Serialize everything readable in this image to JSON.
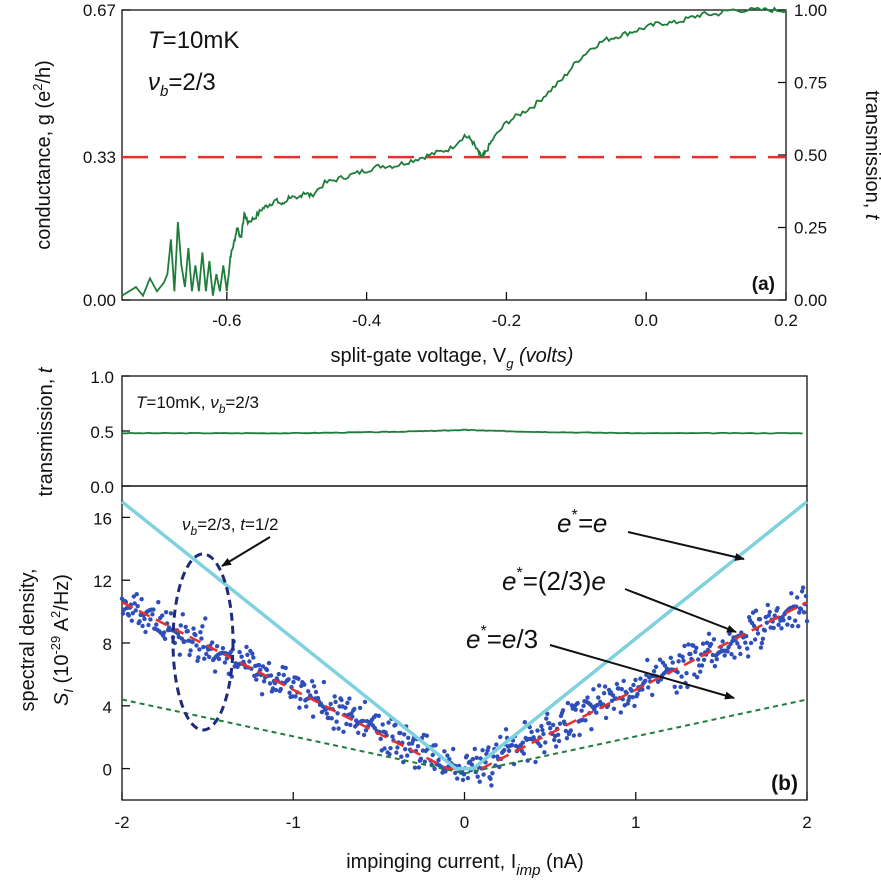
{
  "chart_data": [
    {
      "panel": "a",
      "type": "line",
      "panel_label": "(a)",
      "annotations": {
        "T_prefix": "T",
        "T_value": "=10mK",
        "nu_prefix": "ν",
        "nu_sub": "b",
        "nu_value": "=2/3"
      },
      "xlabel": {
        "text": "split-gate voltage, V",
        "sub": "g",
        "unit": "(volts)"
      },
      "ylabel_left": {
        "prefix": "conductance, g (e",
        "sup": "2",
        "suffix": "/h)"
      },
      "ylabel_right": {
        "text": "transmission, ",
        "var": "t"
      },
      "xlim": [
        -0.75,
        0.2
      ],
      "ylim": [
        0,
        0.67
      ],
      "x_ticks": [
        "-0.6",
        "-0.4",
        "-0.2",
        "0.0",
        "0.2"
      ],
      "x_tick_values": [
        -0.6,
        -0.4,
        -0.2,
        0.0,
        0.2
      ],
      "y_left_ticks": [
        "0.00",
        "0.33",
        "0.67"
      ],
      "y_left_tick_values": [
        0.0,
        0.33,
        0.67
      ],
      "y_right_ticks": [
        "0.00",
        "0.25",
        "0.50",
        "0.75",
        "1.00"
      ],
      "y_right_tick_values": [
        0.0,
        0.25,
        0.5,
        0.75,
        1.0
      ],
      "series": [
        {
          "color": "#1e7d3a",
          "x": [
            -0.75,
            -0.74,
            -0.73,
            -0.72,
            -0.71,
            -0.7,
            -0.69,
            -0.685,
            -0.68,
            -0.675,
            -0.67,
            -0.665,
            -0.66,
            -0.655,
            -0.65,
            -0.645,
            -0.64,
            -0.635,
            -0.63,
            -0.625,
            -0.62,
            -0.615,
            -0.61,
            -0.605,
            -0.6,
            -0.595,
            -0.59,
            -0.585,
            -0.58,
            -0.575,
            -0.57,
            -0.56,
            -0.55,
            -0.54,
            -0.53,
            -0.52,
            -0.51,
            -0.5,
            -0.49,
            -0.48,
            -0.46,
            -0.44,
            -0.42,
            -0.4,
            -0.38,
            -0.36,
            -0.34,
            -0.32,
            -0.3,
            -0.28,
            -0.26,
            -0.25,
            -0.24,
            -0.235,
            -0.23,
            -0.22,
            -0.2,
            -0.18,
            -0.16,
            -0.14,
            -0.12,
            -0.1,
            -0.08,
            -0.06,
            -0.04,
            -0.02,
            0.0,
            0.02,
            0.04,
            0.06,
            0.08,
            0.1,
            0.12,
            0.15,
            0.18,
            0.2
          ],
          "y": [
            0.01,
            0.02,
            0.03,
            0.01,
            0.05,
            0.02,
            0.04,
            0.06,
            0.14,
            0.02,
            0.18,
            0.08,
            0.03,
            0.12,
            0.02,
            0.08,
            0.02,
            0.11,
            0.02,
            0.09,
            0.01,
            0.06,
            0.02,
            0.08,
            0.02,
            0.1,
            0.13,
            0.17,
            0.14,
            0.2,
            0.18,
            0.19,
            0.21,
            0.22,
            0.23,
            0.22,
            0.24,
            0.23,
            0.25,
            0.24,
            0.27,
            0.28,
            0.29,
            0.3,
            0.31,
            0.31,
            0.32,
            0.33,
            0.34,
            0.35,
            0.38,
            0.37,
            0.34,
            0.33,
            0.34,
            0.37,
            0.41,
            0.43,
            0.45,
            0.48,
            0.51,
            0.55,
            0.58,
            0.6,
            0.61,
            0.62,
            0.63,
            0.64,
            0.64,
            0.65,
            0.66,
            0.66,
            0.67,
            0.67,
            0.67,
            0.67
          ]
        },
        {
          "color": "#e63030",
          "style": "dashed",
          "x": [
            -0.75,
            0.2
          ],
          "y": [
            0.33,
            0.33
          ]
        }
      ]
    },
    {
      "panel": "b-top",
      "type": "line",
      "annotations": {
        "T_prefix": "T",
        "T_value": "=10mK, ",
        "nu_prefix": "ν",
        "nu_sub": "b",
        "nu_value": "=2/3"
      },
      "ylabel": {
        "text": "transmission, ",
        "var": "t"
      },
      "xlim": [
        -2,
        2
      ],
      "ylim": [
        0,
        1
      ],
      "y_ticks": [
        "0.0",
        "0.5",
        "1.0"
      ],
      "y_tick_values": [
        0.0,
        0.5,
        1.0
      ],
      "series": [
        {
          "color": "#1e7d3a",
          "x": [
            -2,
            -1.5,
            -1,
            -0.5,
            -0.2,
            0,
            0.2,
            0.5,
            1,
            1.5,
            2
          ],
          "y": [
            0.48,
            0.48,
            0.48,
            0.49,
            0.5,
            0.51,
            0.5,
            0.49,
            0.48,
            0.48,
            0.48
          ]
        }
      ]
    },
    {
      "panel": "b",
      "type": "scatter",
      "panel_label": "(b)",
      "xlabel": {
        "text": "impinging current, I",
        "sub": "imp",
        "unit": "(nA)"
      },
      "ylabel_line1": "spectral density,",
      "ylabel_line2": {
        "S": "S",
        "sub": "I",
        "pre": " (10",
        "sup": "-29",
        "post": " A",
        "sup2": "2",
        "end": "/Hz)"
      },
      "xlim": [
        -2,
        2
      ],
      "ylim": [
        -2,
        18
      ],
      "x_ticks": [
        "-2",
        "-1",
        "0",
        "1",
        "2"
      ],
      "x_tick_values": [
        -2,
        -1,
        0,
        1,
        2
      ],
      "y_ticks": [
        "0",
        "4",
        "8",
        "12",
        "16"
      ],
      "y_tick_values": [
        0,
        4,
        8,
        12,
        16
      ],
      "ellipse_label": {
        "nu": "ν",
        "sub": "b",
        "text": "=2/3, ",
        "t": "t",
        "rest": "=1/2"
      },
      "labels": {
        "e": {
          "e1": "e",
          "star": "*",
          "rest": "=e"
        },
        "two_thirds": {
          "e1": "e",
          "star": "*",
          "rest": "=(2/3)",
          "e2": "e"
        },
        "third": {
          "e1": "e",
          "star": "*",
          "rest": "=",
          "e2": "e",
          "tail": "/3"
        }
      },
      "series": [
        {
          "color": "#7fd1e0",
          "slope": 8.5,
          "x": [
            -2,
            -0.05,
            0.05,
            2
          ],
          "y": [
            17.0,
            0.0,
            0.0,
            17.0
          ]
        },
        {
          "color": "#e63030",
          "style": "dashed",
          "slope": 5.3,
          "x": [
            -2,
            -0.1,
            0.1,
            2
          ],
          "y": [
            10.6,
            0.0,
            0.0,
            10.6
          ]
        },
        {
          "color": "#1e7d3a",
          "style": "dashed",
          "slope": 2.2,
          "x": [
            -2,
            0,
            2
          ],
          "y": [
            4.4,
            -0.3,
            4.4
          ]
        },
        {
          "color": "#2f4fb8",
          "style": "points",
          "slope": 5.3,
          "scatter": 1.0,
          "count": 700
        }
      ]
    }
  ]
}
